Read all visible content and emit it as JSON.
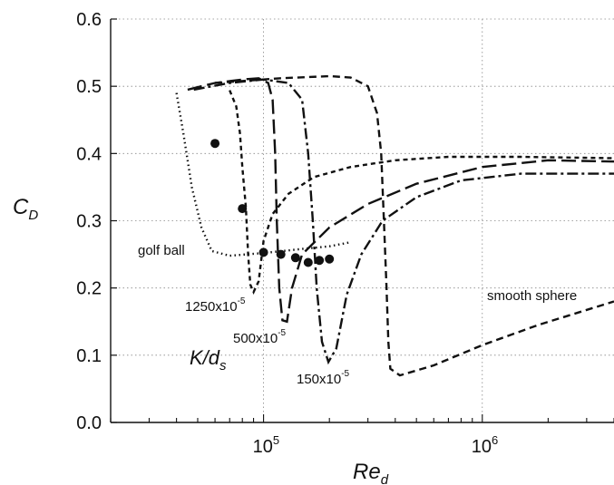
{
  "chart_data": {
    "type": "line",
    "xscale": "log",
    "xlim": [
      20000,
      4000000
    ],
    "ylim": [
      0.0,
      0.6
    ],
    "grid": true,
    "xlabel_main": "Re",
    "xlabel_sub": "d",
    "ylabel_main": "C",
    "ylabel_sub": "D",
    "yticks": [
      {
        "value": 0.0,
        "label": "0.0"
      },
      {
        "value": 0.1,
        "label": "0.1"
      },
      {
        "value": 0.2,
        "label": "0.2"
      },
      {
        "value": 0.3,
        "label": "0.3"
      },
      {
        "value": 0.4,
        "label": "0.4"
      },
      {
        "value": 0.5,
        "label": "0.5"
      },
      {
        "value": 0.6,
        "label": "0.6"
      }
    ],
    "xticks": [
      {
        "value": 100000,
        "base": "10",
        "exp": "5"
      },
      {
        "value": 1000000,
        "base": "10",
        "exp": "6"
      }
    ],
    "series": [
      {
        "label_main": "1250x10",
        "label_exp": "-5",
        "style": "short-dash",
        "points": [
          [
            70000,
            0.494
          ],
          [
            75000,
            0.47
          ],
          [
            78000,
            0.43
          ],
          [
            80000,
            0.38
          ],
          [
            83000,
            0.32
          ],
          [
            85000,
            0.25
          ],
          [
            87000,
            0.205
          ],
          [
            90000,
            0.194
          ],
          [
            95000,
            0.21
          ],
          [
            100000,
            0.27
          ],
          [
            110000,
            0.31
          ],
          [
            130000,
            0.34
          ],
          [
            170000,
            0.365
          ],
          [
            250000,
            0.38
          ],
          [
            400000,
            0.39
          ],
          [
            700000,
            0.395
          ],
          [
            1500000,
            0.395
          ],
          [
            4000000,
            0.393
          ]
        ]
      },
      {
        "label_main": "500x10",
        "label_exp": "-5",
        "style": "long-dash",
        "points": [
          [
            45000,
            0.495
          ],
          [
            60000,
            0.505
          ],
          [
            80000,
            0.51
          ],
          [
            95000,
            0.512
          ],
          [
            105000,
            0.505
          ],
          [
            110000,
            0.48
          ],
          [
            113000,
            0.4
          ],
          [
            115000,
            0.3
          ],
          [
            118000,
            0.2
          ],
          [
            122000,
            0.152
          ],
          [
            128000,
            0.15
          ],
          [
            135000,
            0.2
          ],
          [
            150000,
            0.25
          ],
          [
            200000,
            0.29
          ],
          [
            300000,
            0.325
          ],
          [
            500000,
            0.355
          ],
          [
            1000000,
            0.38
          ],
          [
            2000000,
            0.39
          ],
          [
            4000000,
            0.388
          ]
        ]
      },
      {
        "label_main": "150x10",
        "label_exp": "-5",
        "style": "dash-dot",
        "points": [
          [
            48000,
            0.495
          ],
          [
            70000,
            0.505
          ],
          [
            100000,
            0.51
          ],
          [
            130000,
            0.505
          ],
          [
            150000,
            0.48
          ],
          [
            160000,
            0.4
          ],
          [
            168000,
            0.3
          ],
          [
            175000,
            0.2
          ],
          [
            185000,
            0.12
          ],
          [
            198000,
            0.09
          ],
          [
            215000,
            0.11
          ],
          [
            240000,
            0.19
          ],
          [
            280000,
            0.25
          ],
          [
            350000,
            0.3
          ],
          [
            500000,
            0.335
          ],
          [
            800000,
            0.36
          ],
          [
            1500000,
            0.37
          ],
          [
            4000000,
            0.37
          ]
        ]
      },
      {
        "label_main": "smooth sphere",
        "style": "dash",
        "points": [
          [
            60000,
            0.505
          ],
          [
            120000,
            0.512
          ],
          [
            200000,
            0.515
          ],
          [
            250000,
            0.513
          ],
          [
            300000,
            0.5
          ],
          [
            330000,
            0.46
          ],
          [
            345000,
            0.4
          ],
          [
            355000,
            0.3
          ],
          [
            365000,
            0.2
          ],
          [
            372000,
            0.12
          ],
          [
            380000,
            0.08
          ],
          [
            420000,
            0.07
          ],
          [
            600000,
            0.085
          ],
          [
            1000000,
            0.115
          ],
          [
            1800000,
            0.145
          ],
          [
            4000000,
            0.18
          ]
        ]
      },
      {
        "label_main": "golf ball",
        "style": "dot",
        "points": [
          [
            40000,
            0.49
          ],
          [
            43000,
            0.43
          ],
          [
            47000,
            0.35
          ],
          [
            52000,
            0.29
          ],
          [
            58000,
            0.255
          ],
          [
            70000,
            0.248
          ],
          [
            100000,
            0.252
          ],
          [
            150000,
            0.258
          ],
          [
            200000,
            0.262
          ],
          [
            250000,
            0.268
          ]
        ]
      }
    ],
    "markers": {
      "style": "filled-circle",
      "points": [
        [
          60000,
          0.415
        ],
        [
          80000,
          0.318
        ],
        [
          100000,
          0.253
        ],
        [
          120000,
          0.25
        ],
        [
          140000,
          0.245
        ],
        [
          160000,
          0.238
        ],
        [
          180000,
          0.241
        ],
        [
          200000,
          0.243
        ]
      ]
    },
    "annotation_parameter": {
      "main": "K/d",
      "sub": "s"
    }
  }
}
